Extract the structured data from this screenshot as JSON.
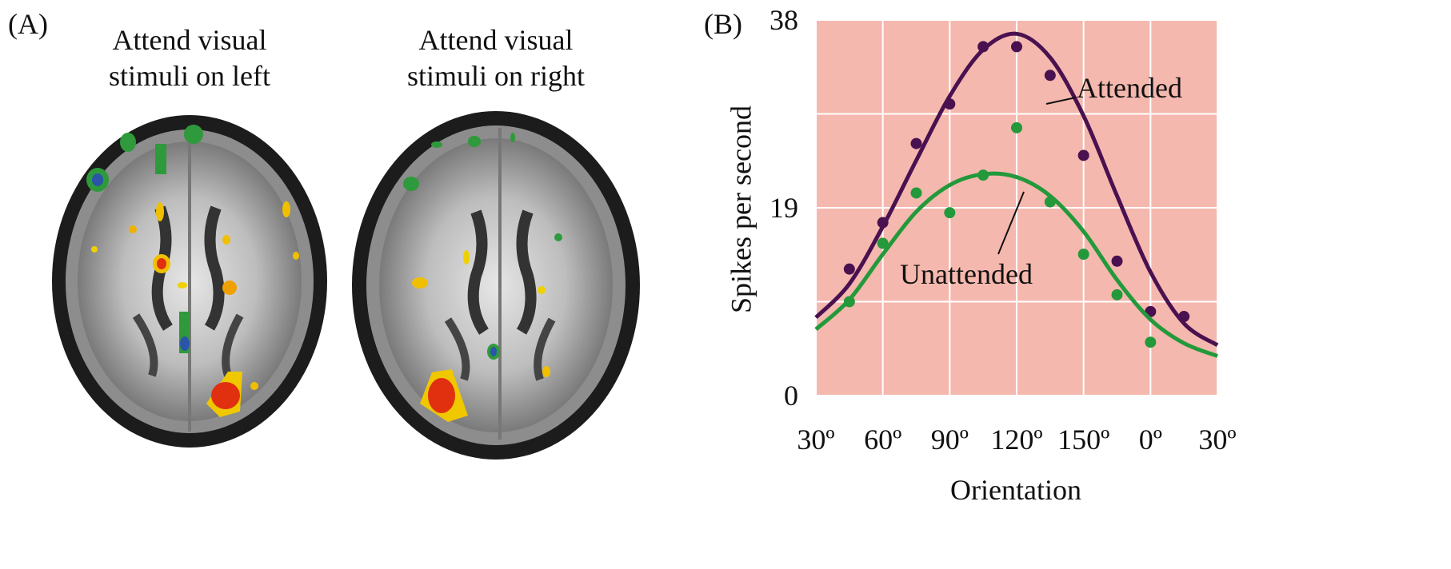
{
  "panel_a": {
    "label": "(A)",
    "captions": [
      [
        "Attend visual",
        "stimuli on left"
      ],
      [
        "Attend visual",
        "stimuli on right"
      ]
    ]
  },
  "chart_data": {
    "type": "line",
    "panel_label": "(B)",
    "x_label": "Orientation",
    "y_label": "Spikes per second",
    "x": [
      0,
      15,
      30,
      45,
      60,
      75,
      90,
      105,
      120,
      135,
      150,
      165,
      180
    ],
    "xlim": [
      0,
      180
    ],
    "xticks": [
      {
        "value": 0,
        "label": "30º"
      },
      {
        "value": 30,
        "label": "60º"
      },
      {
        "value": 60,
        "label": "90º"
      },
      {
        "value": 90,
        "label": "120º"
      },
      {
        "value": 120,
        "label": "150º"
      },
      {
        "value": 150,
        "label": "0º"
      },
      {
        "value": 180,
        "label": "30º"
      }
    ],
    "ylim": [
      0,
      38
    ],
    "yticks": [
      0,
      19,
      38
    ],
    "ygrid": [
      0,
      9.5,
      19,
      28.5,
      38
    ],
    "grid": true,
    "background": "#f5b8ae",
    "series": [
      {
        "name": "Attended",
        "color": "#4a1150",
        "values": [
          7.9,
          11.3,
          17.1,
          23.8,
          30.3,
          35.0,
          36.6,
          34.2,
          28.3,
          20.2,
          12.5,
          7.3,
          5.1
        ],
        "dots": [
          null,
          12.8,
          17.5,
          25.5,
          29.5,
          35.3,
          35.3,
          32.4,
          24.3,
          13.6,
          8.5,
          8.0,
          null
        ]
      },
      {
        "name": "Unattended",
        "color": "#23993b",
        "values": [
          6.7,
          9.7,
          14.3,
          18.6,
          21.3,
          22.4,
          22.1,
          20.2,
          16.6,
          11.7,
          7.7,
          5.3,
          4.0
        ],
        "dots": [
          null,
          9.5,
          15.4,
          20.5,
          18.5,
          22.3,
          27.1,
          19.6,
          14.3,
          10.2,
          5.4,
          null,
          null
        ]
      }
    ]
  }
}
